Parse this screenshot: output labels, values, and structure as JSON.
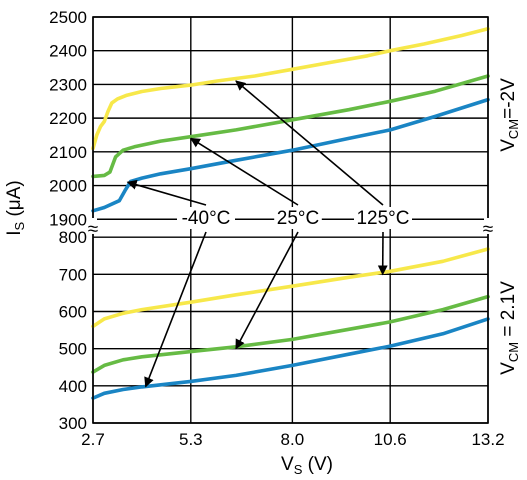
{
  "chart_data": {
    "type": "line",
    "xlabel": "V",
    "xlabel_sub": "S",
    "xlabel_unit": " (V)",
    "ylabel": "I",
    "ylabel_sub": "S",
    "ylabel_unit": " (μA)",
    "xlim": [
      2.7,
      13.2
    ],
    "x_ticks": [
      "2.7",
      "5.3",
      "8.0",
      "10.6",
      "13.2"
    ],
    "x_tick_values": [
      2.7,
      5.3,
      8.0,
      10.6,
      13.2
    ],
    "grid": true,
    "axis_break_symbol": "≈",
    "panels": [
      {
        "condition_prefix": "V",
        "condition_sub": "CM",
        "condition_rest": "=-2V",
        "ylim": [
          1880,
          2500
        ],
        "y_ticks": [
          "2500",
          "2400",
          "2300",
          "2200",
          "2100",
          "2000",
          "1900"
        ],
        "y_tick_values": [
          2500,
          2400,
          2300,
          2200,
          2100,
          2000,
          1900
        ],
        "series": [
          {
            "name": "125°C",
            "color": "#f7e84a",
            "points": [
              [
                2.7,
                2110
              ],
              [
                2.8,
                2150
              ],
              [
                2.9,
                2175
              ],
              [
                3.0,
                2190
              ],
              [
                3.1,
                2220
              ],
              [
                3.2,
                2245
              ],
              [
                3.35,
                2257
              ],
              [
                3.6,
                2268
              ],
              [
                4.0,
                2279
              ],
              [
                4.5,
                2288
              ],
              [
                5.3,
                2298
              ],
              [
                6.0,
                2310
              ],
              [
                7.0,
                2325
              ],
              [
                8.0,
                2345
              ],
              [
                9.0,
                2365
              ],
              [
                10.0,
                2385
              ],
              [
                10.6,
                2400
              ],
              [
                11.5,
                2420
              ],
              [
                12.5,
                2445
              ],
              [
                13.2,
                2465
              ]
            ]
          },
          {
            "name": "25°C",
            "color": "#66bb44",
            "points": [
              [
                2.7,
                2027
              ],
              [
                3.0,
                2030
              ],
              [
                3.15,
                2040
              ],
              [
                3.3,
                2085
              ],
              [
                3.5,
                2105
              ],
              [
                3.8,
                2115
              ],
              [
                4.5,
                2132
              ],
              [
                5.3,
                2145
              ],
              [
                6.5,
                2165
              ],
              [
                8.0,
                2195
              ],
              [
                9.5,
                2225
              ],
              [
                10.6,
                2250
              ],
              [
                11.8,
                2280
              ],
              [
                13.2,
                2325
              ]
            ]
          },
          {
            "name": "-40°C",
            "color": "#1a85c4",
            "points": [
              [
                2.7,
                1925
              ],
              [
                3.0,
                1935
              ],
              [
                3.4,
                1955
              ],
              [
                3.55,
                1985
              ],
              [
                3.7,
                2012
              ],
              [
                4.0,
                2022
              ],
              [
                4.5,
                2035
              ],
              [
                5.3,
                2050
              ],
              [
                6.5,
                2075
              ],
              [
                8.0,
                2105
              ],
              [
                9.5,
                2140
              ],
              [
                10.6,
                2165
              ],
              [
                11.8,
                2205
              ],
              [
                13.2,
                2255
              ]
            ]
          }
        ]
      },
      {
        "condition_prefix": "V",
        "condition_sub": "CM",
        "condition_rest": " = 2.1V",
        "ylim": [
          300,
          830
        ],
        "y_ticks": [
          "800",
          "700",
          "600",
          "500",
          "400",
          "300"
        ],
        "y_tick_values": [
          800,
          700,
          600,
          500,
          400,
          300
        ],
        "series": [
          {
            "name": "125°C",
            "color": "#f7e84a",
            "points": [
              [
                2.7,
                560
              ],
              [
                3.0,
                580
              ],
              [
                3.5,
                595
              ],
              [
                4.0,
                605
              ],
              [
                5.3,
                625
              ],
              [
                6.5,
                645
              ],
              [
                8.0,
                668
              ],
              [
                9.5,
                692
              ],
              [
                10.6,
                708
              ],
              [
                12.0,
                735
              ],
              [
                13.2,
                768
              ]
            ]
          },
          {
            "name": "25°C",
            "color": "#66bb44",
            "points": [
              [
                2.7,
                437
              ],
              [
                3.0,
                455
              ],
              [
                3.5,
                470
              ],
              [
                4.0,
                478
              ],
              [
                5.3,
                492
              ],
              [
                6.5,
                505
              ],
              [
                8.0,
                525
              ],
              [
                9.5,
                552
              ],
              [
                10.6,
                572
              ],
              [
                12.0,
                605
              ],
              [
                13.2,
                640
              ]
            ]
          },
          {
            "name": "-40°C",
            "color": "#1a85c4",
            "points": [
              [
                2.7,
                367
              ],
              [
                3.0,
                380
              ],
              [
                3.5,
                390
              ],
              [
                4.0,
                397
              ],
              [
                5.3,
                412
              ],
              [
                6.5,
                428
              ],
              [
                8.0,
                455
              ],
              [
                9.5,
                485
              ],
              [
                10.6,
                507
              ],
              [
                12.0,
                540
              ],
              [
                13.2,
                580
              ]
            ]
          }
        ]
      }
    ],
    "annotations": [
      {
        "text": "-40°C",
        "targets": [
          [
            0,
            2,
            3.62,
            2010
          ],
          [
            1,
            2,
            4.1,
            398
          ]
        ]
      },
      {
        "text": "25°C",
        "targets": [
          [
            0,
            1,
            5.3,
            2140
          ],
          [
            1,
            1,
            6.5,
            500
          ]
        ]
      },
      {
        "text": "125°C",
        "targets": [
          [
            0,
            0,
            6.5,
            2310
          ],
          [
            1,
            0,
            10.4,
            700
          ]
        ]
      }
    ]
  }
}
